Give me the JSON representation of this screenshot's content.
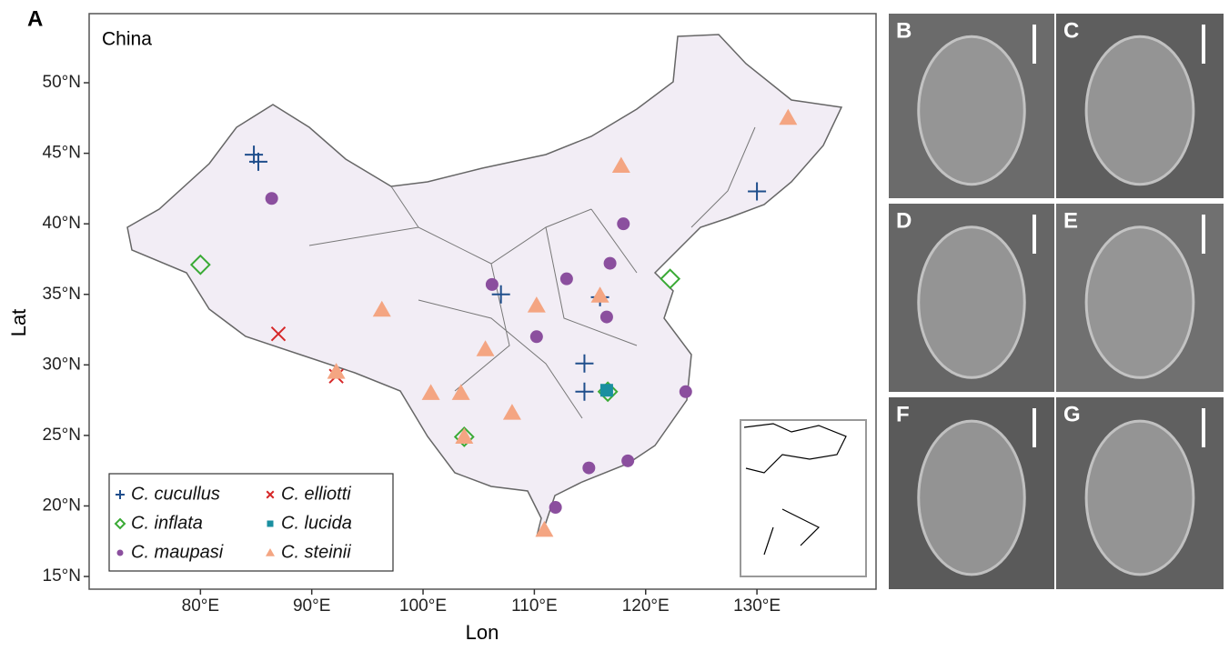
{
  "chart_data": {
    "type": "scatter",
    "panel_label": "A",
    "region_label": "China",
    "xlabel": "Lon",
    "ylabel": "Lat",
    "xlim": [
      70,
      140.7
    ],
    "ylim": [
      14.1,
      54.9
    ],
    "xticks": [
      {
        "value": 80,
        "label": "80°E"
      },
      {
        "value": 90,
        "label": "90°E"
      },
      {
        "value": 100,
        "label": "100°E"
      },
      {
        "value": 110,
        "label": "110°E"
      },
      {
        "value": 120,
        "label": "120°E"
      },
      {
        "value": 130,
        "label": "130°E"
      }
    ],
    "yticks": [
      {
        "value": 15,
        "label": "15°N"
      },
      {
        "value": 20,
        "label": "20°N"
      },
      {
        "value": 25,
        "label": "25°N"
      },
      {
        "value": 30,
        "label": "30°N"
      },
      {
        "value": 35,
        "label": "35°N"
      },
      {
        "value": 40,
        "label": "40°N"
      },
      {
        "value": 45,
        "label": "45°N"
      },
      {
        "value": 50,
        "label": "50°N"
      }
    ],
    "legend": "bottom-left",
    "series": [
      {
        "name": "C. cucullus",
        "color": "#1f4e8c",
        "marker": "plus",
        "x": [
          84.8,
          85.2,
          107.0,
          115.9,
          114.5,
          114.5,
          130.0
        ],
        "y": [
          44.9,
          44.4,
          35.0,
          34.8,
          30.1,
          28.1,
          42.3
        ]
      },
      {
        "name": "C. elliotti",
        "color": "#d62728",
        "marker": "cross",
        "x": [
          87.0,
          92.2
        ],
        "y": [
          32.2,
          29.2
        ]
      },
      {
        "name": "C. inflata",
        "color": "#3aaa35",
        "marker": "diamond",
        "x": [
          80.0,
          122.2,
          116.6,
          103.7
        ],
        "y": [
          37.1,
          36.1,
          28.1,
          24.9
        ]
      },
      {
        "name": "C. lucida",
        "color": "#1a8fa0",
        "marker": "square",
        "x": [
          116.5
        ],
        "y": [
          28.2
        ]
      },
      {
        "name": "C. maupasi",
        "color": "#8b4f9e",
        "marker": "circle",
        "x": [
          86.4,
          106.2,
          112.9,
          118.0,
          116.8,
          116.5,
          110.2,
          123.6,
          114.9,
          118.4,
          111.9
        ],
        "y": [
          41.8,
          35.7,
          36.1,
          40.0,
          37.2,
          33.4,
          32.0,
          28.1,
          22.7,
          23.2,
          19.9
        ]
      },
      {
        "name": "C. steinii",
        "color": "#f4a582",
        "marker": "triangle",
        "x": [
          132.8,
          117.8,
          96.3,
          110.2,
          105.6,
          115.9,
          100.7,
          103.4,
          108.0,
          92.2,
          103.7,
          110.9
        ],
        "y": [
          47.5,
          44.1,
          33.9,
          34.2,
          31.1,
          34.9,
          28.0,
          28.0,
          26.6,
          29.5,
          24.9,
          18.3
        ]
      }
    ]
  },
  "images": {
    "panel_labels": [
      "B",
      "C",
      "D",
      "E",
      "F",
      "G"
    ]
  }
}
